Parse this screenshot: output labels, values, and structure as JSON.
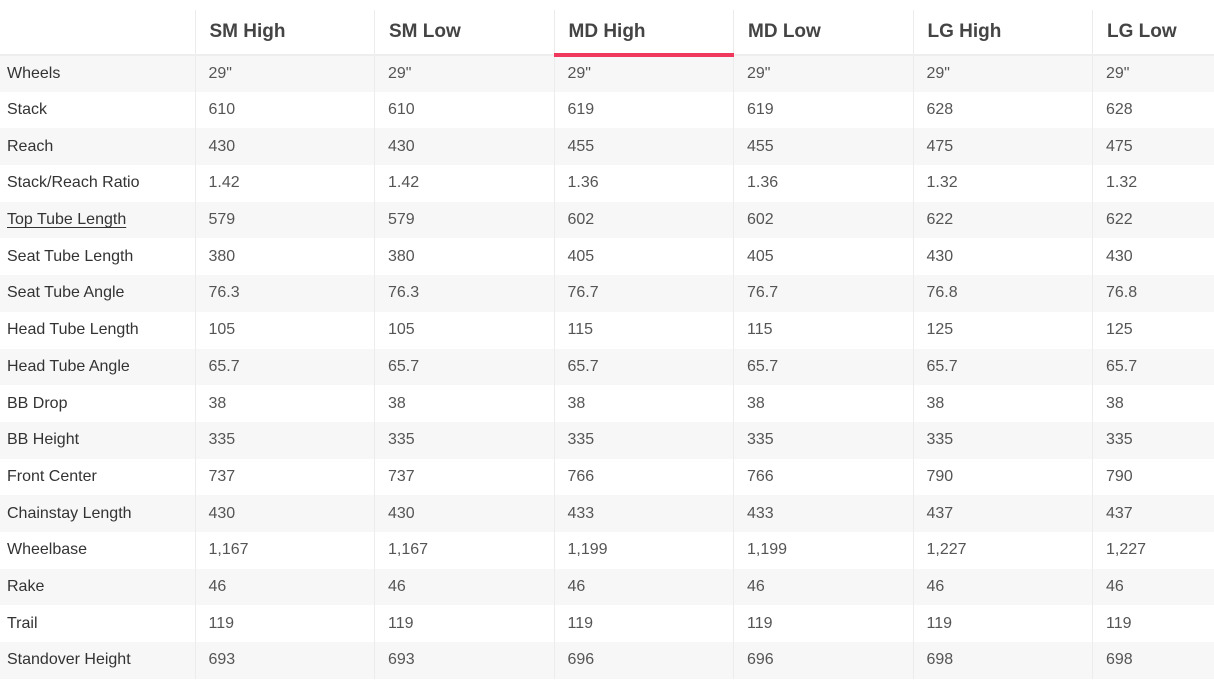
{
  "table": {
    "columns": [
      "SM High",
      "SM Low",
      "MD High",
      "MD Low",
      "LG High",
      "LG Low"
    ],
    "active_column": "MD High",
    "accent_color": "#f0375c",
    "rows": [
      {
        "label": "Wheels",
        "values": [
          "29\"",
          "29\"",
          "29\"",
          "29\"",
          "29\"",
          "29\""
        ]
      },
      {
        "label": "Stack",
        "values": [
          "610",
          "610",
          "619",
          "619",
          "628",
          "628"
        ]
      },
      {
        "label": "Reach",
        "values": [
          "430",
          "430",
          "455",
          "455",
          "475",
          "475"
        ]
      },
      {
        "label": "Stack/Reach Ratio",
        "values": [
          "1.42",
          "1.42",
          "1.36",
          "1.36",
          "1.32",
          "1.32"
        ]
      },
      {
        "label": "Top Tube Length",
        "link": true,
        "values": [
          "579",
          "579",
          "602",
          "602",
          "622",
          "622"
        ]
      },
      {
        "label": "Seat Tube Length",
        "values": [
          "380",
          "380",
          "405",
          "405",
          "430",
          "430"
        ]
      },
      {
        "label": "Seat Tube Angle",
        "values": [
          "76.3",
          "76.3",
          "76.7",
          "76.7",
          "76.8",
          "76.8"
        ]
      },
      {
        "label": "Head Tube Length",
        "values": [
          "105",
          "105",
          "115",
          "115",
          "125",
          "125"
        ]
      },
      {
        "label": "Head Tube Angle",
        "values": [
          "65.7",
          "65.7",
          "65.7",
          "65.7",
          "65.7",
          "65.7"
        ]
      },
      {
        "label": "BB Drop",
        "values": [
          "38",
          "38",
          "38",
          "38",
          "38",
          "38"
        ]
      },
      {
        "label": "BB Height",
        "values": [
          "335",
          "335",
          "335",
          "335",
          "335",
          "335"
        ]
      },
      {
        "label": "Front Center",
        "values": [
          "737",
          "737",
          "766",
          "766",
          "790",
          "790"
        ]
      },
      {
        "label": "Chainstay Length",
        "values": [
          "430",
          "430",
          "433",
          "433",
          "437",
          "437"
        ]
      },
      {
        "label": "Wheelbase",
        "values": [
          "1,167",
          "1,167",
          "1,199",
          "1,199",
          "1,227",
          "1,227"
        ]
      },
      {
        "label": "Rake",
        "values": [
          "46",
          "46",
          "46",
          "46",
          "46",
          "46"
        ]
      },
      {
        "label": "Trail",
        "values": [
          "119",
          "119",
          "119",
          "119",
          "119",
          "119"
        ]
      },
      {
        "label": "Standover Height",
        "values": [
          "693",
          "693",
          "696",
          "696",
          "698",
          "698"
        ]
      }
    ]
  }
}
